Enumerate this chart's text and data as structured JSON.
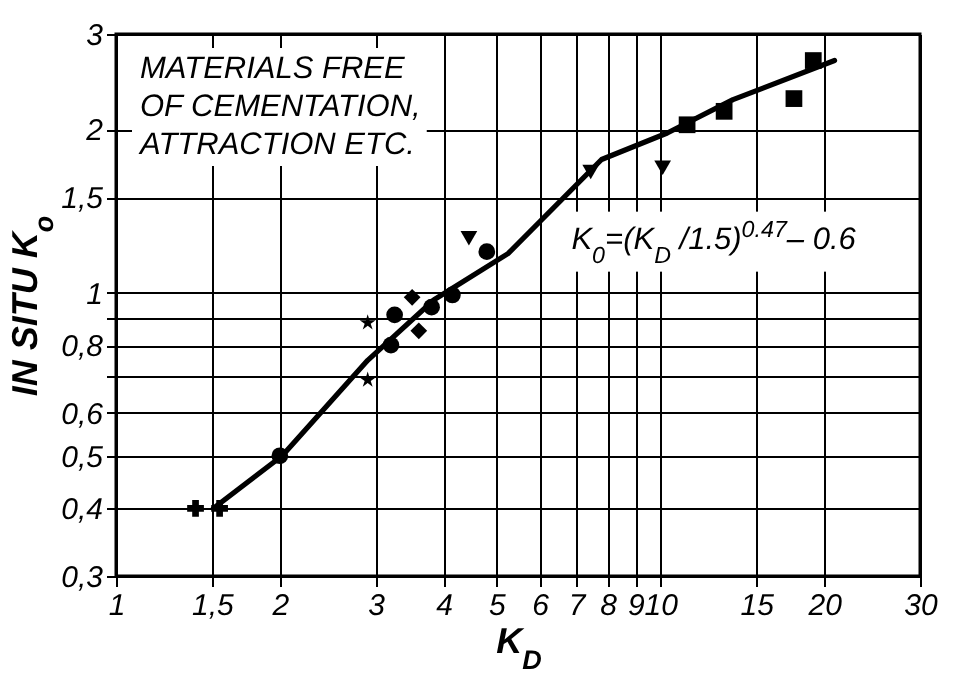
{
  "chart_data": {
    "type": "scatter",
    "xlabel": "K$_{D}$",
    "ylabel": "IN SITU   K$_{o}$",
    "log": "xy",
    "grid": true,
    "xlim": [
      1,
      30
    ],
    "ylim": [
      0.3,
      3
    ],
    "xticks": [
      1,
      {
        "value": 1.5,
        "label": "1,5"
      },
      2,
      3,
      4,
      5,
      6,
      7,
      8,
      9,
      10,
      15,
      20,
      30
    ],
    "yticks": [
      {
        "value": 0.3,
        "label": "0,3"
      },
      {
        "value": 0.4,
        "label": "0,4"
      },
      {
        "value": 0.5,
        "label": "0,5"
      },
      {
        "value": 0.6,
        "label": "0,6"
      },
      {
        "value": 0.7,
        "label": null
      },
      {
        "value": 0.8,
        "label": "0,8"
      },
      {
        "value": 0.9,
        "label": null
      },
      1,
      {
        "value": 1.5,
        "label": "1,5"
      },
      2,
      3
    ],
    "annotations": [
      "MATERIALS FREE\nOF CEMENTATION,\nATTRACTION ETC.",
      {
        "text": "K$_{0}$=(K$_{D}$ /1.5)$^{0.47}$– 0.6",
        "x": 5.7,
        "y": 1.29
      }
    ],
    "series": [
      {
        "type": "line",
        "color": "#000000",
        "marker": "none",
        "line_style": "solid",
        "x": [
          1.51,
          2.02,
          2.9,
          3.84,
          5.25,
          7.8,
          10.3,
          13.6,
          20.9
        ],
        "values": [
          0.4,
          0.5,
          0.75,
          0.97,
          1.18,
          1.76,
          1.97,
          2.27,
          2.68
        ]
      },
      {
        "color": "#000000",
        "marker": "cross",
        "x": [
          1.4,
          1.55
        ],
        "values": [
          0.4,
          0.4
        ]
      },
      {
        "color": "#000000",
        "marker": "circle",
        "x": [
          2.0
        ],
        "values": [
          0.5
        ]
      },
      {
        "color": "#000000",
        "marker": "star",
        "x": [
          2.9,
          2.9
        ],
        "values": [
          0.88,
          0.69
        ]
      },
      {
        "color": "#000000",
        "marker": "circle",
        "x": [
          3.2,
          3.25,
          3.8,
          4.15,
          4.8
        ],
        "values": [
          0.8,
          0.91,
          0.94,
          0.99,
          1.19
        ]
      },
      {
        "color": "#000000",
        "marker": "diamond",
        "x": [
          3.5,
          3.6
        ],
        "values": [
          0.98,
          0.85
        ]
      },
      {
        "color": "#000000",
        "marker": "triangle",
        "x": [
          4.45,
          7.45,
          10.1
        ],
        "values": [
          1.26,
          1.67,
          1.7
        ]
      },
      {
        "color": "#000000",
        "marker": "square",
        "x": [
          11.2,
          13.1,
          17.6,
          19.1
        ],
        "values": [
          2.04,
          2.16,
          2.28,
          2.68
        ]
      }
    ]
  }
}
